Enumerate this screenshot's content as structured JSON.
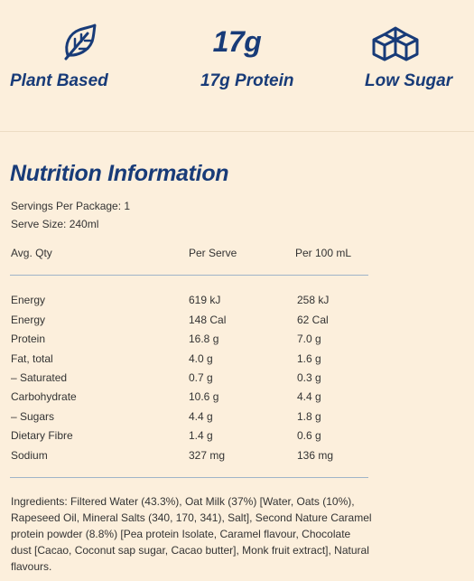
{
  "features": [
    {
      "icon": "leaf-icon",
      "label": "Plant Based"
    },
    {
      "big": "17g",
      "label": "17g Protein"
    },
    {
      "icon": "cubes-icon",
      "label": "Low Sugar"
    }
  ],
  "nutrition": {
    "title": "Nutrition Information",
    "servings": "Servings Per Package: 1",
    "serve_size": "Serve Size: 240ml",
    "headers": [
      "Avg. Qty",
      "Per Serve",
      "Per  100 mL"
    ],
    "rows": [
      [
        "Energy",
        "619 kJ",
        "258 kJ"
      ],
      [
        "Energy",
        "148 Cal",
        "62 Cal"
      ],
      [
        "Protein",
        "16.8 g",
        "7.0 g"
      ],
      [
        "Fat, total",
        "4.0 g",
        "1.6 g"
      ],
      [
        "– Saturated",
        "0.7 g",
        "0.3 g"
      ],
      [
        "Carbohydrate",
        "10.6 g",
        "4.4 g"
      ],
      [
        "– Sugars",
        "4.4 g",
        "1.8 g"
      ],
      [
        "Dietary Fibre",
        "1.4 g",
        "0.6 g"
      ],
      [
        "Sodium",
        "327 mg",
        "136 mg"
      ]
    ],
    "ingredients": "Ingredients: Filtered Water (43.3%), Oat Milk (37%) [Water, Oats (10%), Rapeseed Oil, Mineral Salts (340, 170, 341), Salt], Second Nature Caramel protein powder (8.8%) [Pea protein Isolate, Caramel flavour, Chocolate dust [Cacao, Coconut sap sugar, Cacao butter], Monk fruit extract], Natural flavours."
  },
  "colors": {
    "background": "#fcefdc",
    "brand": "#183b78",
    "rule": "#9fb4c8"
  }
}
